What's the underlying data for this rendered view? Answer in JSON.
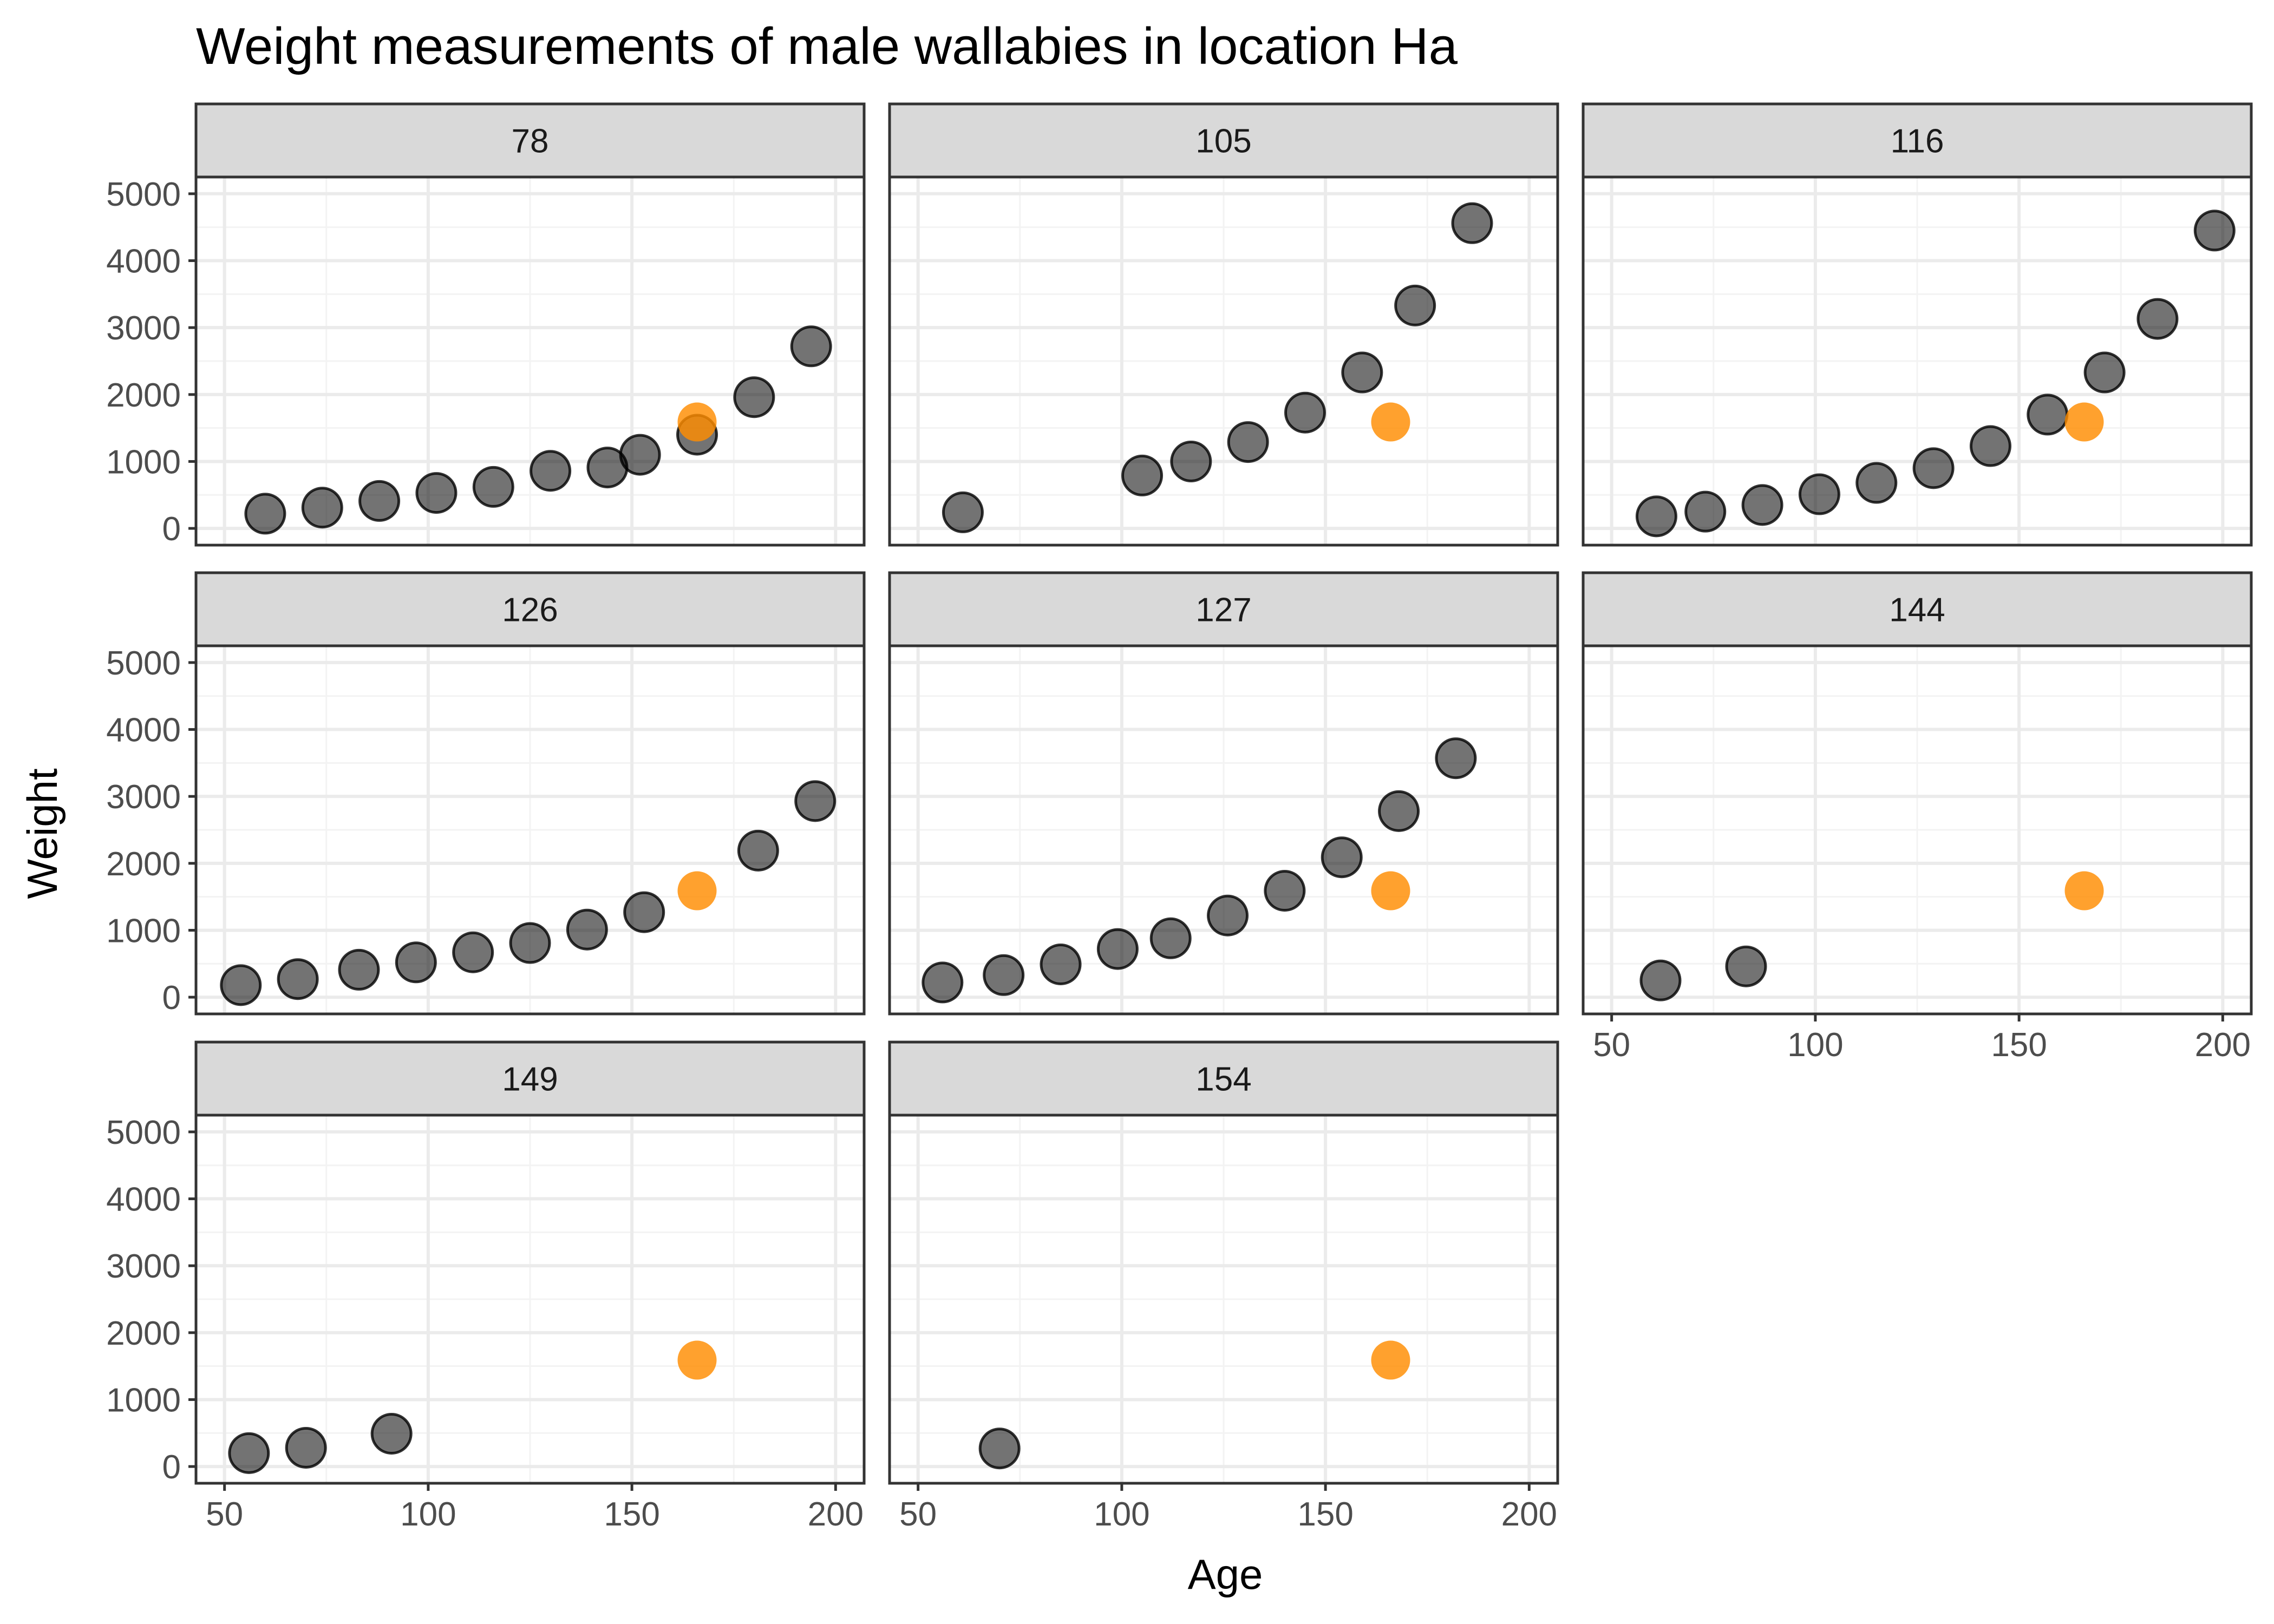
{
  "chart_data": {
    "type": "scatter",
    "title": "Weight measurements of male wallabies in location Ha",
    "xlabel": "Age",
    "ylabel": "Weight",
    "xlim": [
      43,
      207
    ],
    "ylim": [
      -250,
      5250
    ],
    "x_ticks": [
      50,
      100,
      150,
      200
    ],
    "y_ticks": [
      0,
      1000,
      2000,
      3000,
      4000,
      5000
    ],
    "grid": true,
    "layout": "facet_wrap 3 columns",
    "colors": {
      "points": "#000000",
      "reference": "#ff8c00"
    },
    "reference_point": {
      "x": 166,
      "y": 1590
    },
    "panels": [
      {
        "label": "78",
        "points": [
          [
            60,
            220
          ],
          [
            74,
            310
          ],
          [
            88,
            410
          ],
          [
            102,
            530
          ],
          [
            116,
            620
          ],
          [
            130,
            860
          ],
          [
            144,
            910
          ],
          [
            152,
            1100
          ],
          [
            166,
            1400
          ],
          [
            180,
            1960
          ],
          [
            194,
            2720
          ]
        ]
      },
      {
        "label": "105",
        "points": [
          [
            61,
            240
          ],
          [
            105,
            790
          ],
          [
            117,
            1000
          ],
          [
            131,
            1290
          ],
          [
            145,
            1730
          ],
          [
            159,
            2330
          ],
          [
            172,
            3330
          ],
          [
            186,
            4560
          ]
        ]
      },
      {
        "label": "116",
        "points": [
          [
            61,
            180
          ],
          [
            73,
            250
          ],
          [
            87,
            350
          ],
          [
            101,
            510
          ],
          [
            115,
            680
          ],
          [
            129,
            900
          ],
          [
            143,
            1230
          ],
          [
            157,
            1700
          ],
          [
            171,
            2330
          ],
          [
            184,
            3130
          ],
          [
            198,
            4450
          ]
        ]
      },
      {
        "label": "126",
        "points": [
          [
            54,
            180
          ],
          [
            68,
            270
          ],
          [
            83,
            410
          ],
          [
            97,
            520
          ],
          [
            111,
            670
          ],
          [
            125,
            810
          ],
          [
            139,
            1010
          ],
          [
            153,
            1270
          ],
          [
            181,
            2190
          ],
          [
            195,
            2930
          ]
        ]
      },
      {
        "label": "127",
        "points": [
          [
            56,
            220
          ],
          [
            71,
            330
          ],
          [
            85,
            490
          ],
          [
            99,
            720
          ],
          [
            112,
            880
          ],
          [
            126,
            1220
          ],
          [
            140,
            1590
          ],
          [
            154,
            2090
          ],
          [
            168,
            2780
          ],
          [
            182,
            3570
          ]
        ]
      },
      {
        "label": "144",
        "points": [
          [
            62,
            250
          ],
          [
            83,
            460
          ]
        ]
      },
      {
        "label": "149",
        "points": [
          [
            56,
            200
          ],
          [
            70,
            280
          ],
          [
            91,
            490
          ]
        ]
      },
      {
        "label": "154",
        "points": [
          [
            70,
            270
          ]
        ]
      }
    ]
  }
}
